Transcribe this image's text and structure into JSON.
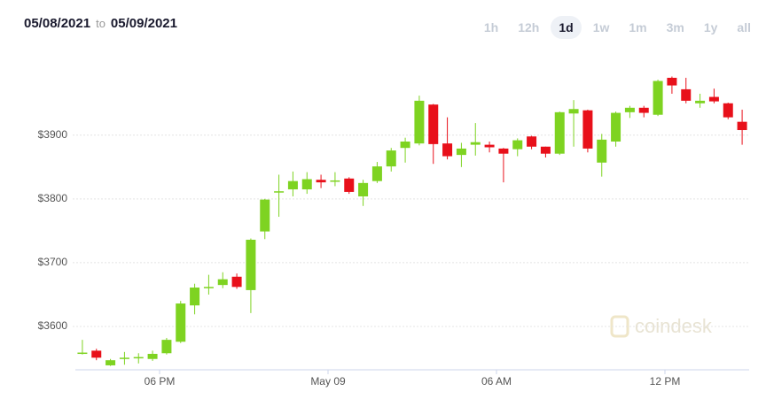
{
  "header": {
    "from": "05/08/2021",
    "separator": "to",
    "to": "05/09/2021"
  },
  "range_buttons": [
    "1h",
    "12h",
    "1d",
    "1w",
    "1m",
    "3m",
    "1y",
    "all"
  ],
  "selected_range": "1d",
  "watermark": "coindesk",
  "chart_data": {
    "type": "candlestick",
    "up_color": "#7ed321",
    "down_color": "#e8101a",
    "grid": true,
    "xlim": [
      15,
      39
    ],
    "xticks": [
      {
        "value": 18,
        "label": "06 PM"
      },
      {
        "value": 24,
        "label": "May 09"
      },
      {
        "value": 30,
        "label": "06 AM"
      },
      {
        "value": 36,
        "label": "12 PM"
      }
    ],
    "ylim": [
      3532,
      4001
    ],
    "yticks": [
      {
        "value": 3600,
        "label": "$3600"
      },
      {
        "value": 3700,
        "label": "$3700"
      },
      {
        "value": 3800,
        "label": "$3800"
      },
      {
        "value": 3900,
        "label": "$3900"
      }
    ],
    "x": [
      15.25,
      15.75,
      16.25,
      16.75,
      17.25,
      17.75,
      18.25,
      18.75,
      19.25,
      19.75,
      20.25,
      20.75,
      21.25,
      21.75,
      22.25,
      22.75,
      23.25,
      23.75,
      24.25,
      24.75,
      25.25,
      25.75,
      26.25,
      26.75,
      27.25,
      27.75,
      28.25,
      28.75,
      29.25,
      29.75,
      30.25,
      30.75,
      31.25,
      31.75,
      32.25,
      32.75,
      33.25,
      33.75,
      34.25,
      34.75,
      35.25,
      35.75,
      36.25,
      36.75,
      37.25,
      37.75,
      38.25,
      38.75
    ],
    "open": [
      3558,
      3562,
      3539,
      3549,
      3550,
      3549,
      3558,
      3576,
      3633,
      3660,
      3665,
      3678,
      3657,
      3749,
      3810,
      3815,
      3815,
      3830,
      3828,
      3832,
      3804,
      3828,
      3851,
      3880,
      3887,
      3948,
      3887,
      3869,
      3885,
      3885,
      3879,
      3878,
      3898,
      3882,
      3871,
      3934,
      3939,
      3857,
      3890,
      3936,
      3943,
      3932,
      3990,
      3972,
      3950,
      3960,
      3950,
      3921
    ],
    "high": [
      3579,
      3565,
      3549,
      3560,
      3558,
      3562,
      3582,
      3640,
      3667,
      3681,
      3685,
      3683,
      3738,
      3800,
      3838,
      3843,
      3842,
      3838,
      3842,
      3834,
      3830,
      3858,
      3880,
      3896,
      3962,
      3949,
      3928,
      3888,
      3919,
      3890,
      3880,
      3895,
      3899,
      3882,
      3937,
      3955,
      3940,
      3902,
      3937,
      3946,
      3946,
      3987,
      3992,
      3990,
      3965,
      3973,
      3951,
      3940
    ],
    "low": [
      3556,
      3547,
      3538,
      3540,
      3542,
      3546,
      3556,
      3574,
      3619,
      3650,
      3660,
      3659,
      3621,
      3737,
      3772,
      3804,
      3808,
      3817,
      3820,
      3808,
      3789,
      3825,
      3843,
      3857,
      3884,
      3855,
      3862,
      3850,
      3868,
      3873,
      3826,
      3867,
      3878,
      3865,
      3869,
      3882,
      3873,
      3835,
      3882,
      3927,
      3928,
      3930,
      3965,
      3950,
      3943,
      3950,
      3925,
      3885
    ],
    "close": [
      3559,
      3551,
      3547,
      3551,
      3552,
      3557,
      3579,
      3636,
      3661,
      3662,
      3674,
      3662,
      3736,
      3799,
      3812,
      3828,
      3831,
      3826,
      3829,
      3811,
      3825,
      3851,
      3876,
      3890,
      3954,
      3886,
      3867,
      3879,
      3889,
      3881,
      3871,
      3892,
      3882,
      3871,
      3936,
      3941,
      3879,
      3893,
      3935,
      3943,
      3935,
      3985,
      3978,
      3954,
      3954,
      3953,
      3928,
      3908
    ]
  }
}
